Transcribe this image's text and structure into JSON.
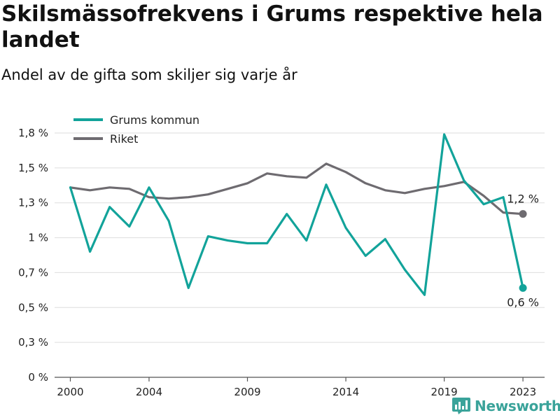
{
  "title": "Skilsmässofrekvens i Grums respektive hela landet",
  "subtitle": "Andel av de gifta som skiljer sig varje år",
  "brand": {
    "name": "Newsworthy",
    "icon": "bar-chart-logo-icon"
  },
  "colors": {
    "grums": "#12a39a",
    "riket": "#6e6b70",
    "grid": "#dedede",
    "axis": "#555555"
  },
  "chart_data": {
    "type": "line",
    "x": [
      2000,
      2001,
      2002,
      2003,
      2004,
      2005,
      2006,
      2007,
      2008,
      2009,
      2010,
      2011,
      2012,
      2013,
      2014,
      2015,
      2016,
      2017,
      2018,
      2019,
      2020,
      2021,
      2022,
      2023
    ],
    "x_ticks": [
      2000,
      2004,
      2009,
      2014,
      2019,
      2023
    ],
    "x_tick_labels": [
      "2000",
      "2004",
      "2009",
      "2014",
      "2019",
      "2023"
    ],
    "y_ticks": [
      0,
      0.25,
      0.5,
      0.75,
      1.0,
      1.25,
      1.5,
      1.75
    ],
    "y_tick_labels": [
      "0 %",
      "0,3 %",
      "0,5 %",
      "0,7 %",
      "1 %",
      "1,3 %",
      "1,5 %",
      "1,8 %"
    ],
    "ylim": [
      0,
      1.75
    ],
    "xlim": [
      1999.2,
      2024.1
    ],
    "grid": true,
    "legend_position": "top-left",
    "series": [
      {
        "name": "Grums kommun",
        "color": "#12a39a",
        "values": [
          1.36,
          0.9,
          1.22,
          1.08,
          1.36,
          1.12,
          0.64,
          1.01,
          0.98,
          0.96,
          0.96,
          1.17,
          0.98,
          1.38,
          1.07,
          0.87,
          0.99,
          0.77,
          0.59,
          1.74,
          1.41,
          1.24,
          1.29,
          0.64
        ],
        "end_label": "0,6 %"
      },
      {
        "name": "Riket",
        "color": "#6e6b70",
        "values": [
          1.36,
          1.34,
          1.36,
          1.35,
          1.29,
          1.28,
          1.29,
          1.31,
          1.35,
          1.39,
          1.46,
          1.44,
          1.43,
          1.53,
          1.47,
          1.39,
          1.34,
          1.32,
          1.35,
          1.37,
          1.4,
          1.3,
          1.18,
          1.17
        ],
        "end_label": "1,2 %"
      }
    ]
  }
}
